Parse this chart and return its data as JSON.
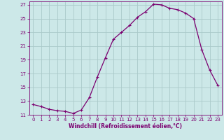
{
  "x": [
    0,
    1,
    2,
    3,
    4,
    5,
    6,
    7,
    8,
    9,
    10,
    11,
    12,
    13,
    14,
    15,
    16,
    17,
    18,
    19,
    20,
    21,
    22,
    23
  ],
  "y": [
    12.5,
    12.2,
    11.8,
    11.6,
    11.5,
    11.2,
    11.7,
    13.5,
    16.5,
    19.3,
    22.0,
    23.0,
    24.0,
    25.2,
    26.0,
    27.1,
    27.0,
    26.5,
    26.3,
    25.8,
    25.0,
    20.5,
    17.5,
    15.3
  ],
  "line_color": "#7b0070",
  "marker": "+",
  "marker_size": 3,
  "marker_linewidth": 0.8,
  "linewidth": 0.9,
  "bg_color": "#cce8e8",
  "grid_color": "#aacaca",
  "tick_color": "#7b0070",
  "label_color": "#7b0070",
  "xlabel": "Windchill (Refroidissement éolien,°C)",
  "ylim": [
    11,
    27.5
  ],
  "xlim": [
    -0.5,
    23.5
  ],
  "yticks": [
    11,
    13,
    15,
    17,
    19,
    21,
    23,
    25,
    27
  ],
  "xticks": [
    0,
    1,
    2,
    3,
    4,
    5,
    6,
    7,
    8,
    9,
    10,
    11,
    12,
    13,
    14,
    15,
    16,
    17,
    18,
    19,
    20,
    21,
    22,
    23
  ],
  "tick_fontsize": 5.0,
  "xlabel_fontsize": 5.5
}
